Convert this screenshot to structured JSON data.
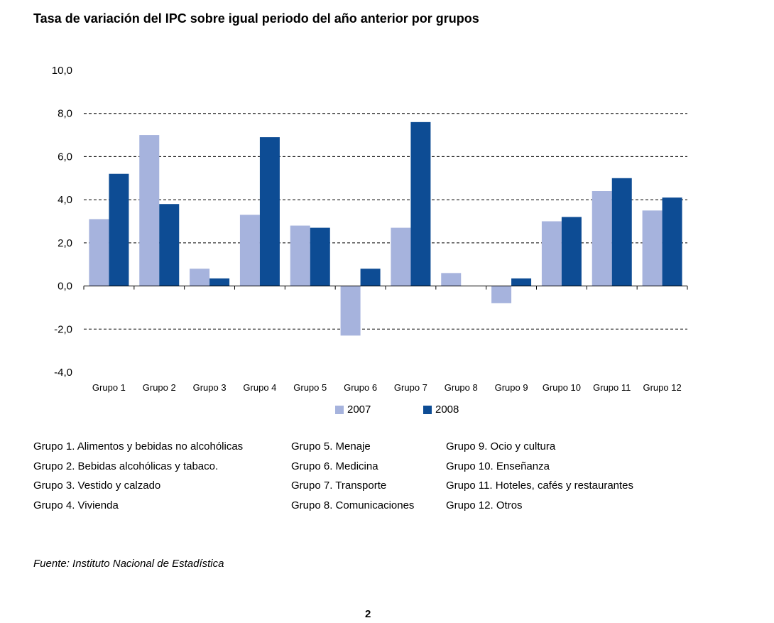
{
  "title": "Tasa de variación del IPC sobre igual periodo del año anterior por grupos",
  "chart_data": {
    "type": "bar",
    "categories": [
      "Grupo 1",
      "Grupo 2",
      "Grupo 3",
      "Grupo 4",
      "Grupo 5",
      "Grupo 6",
      "Grupo 7",
      "Grupo 8",
      "Grupo 9",
      "Grupo 10",
      "Grupo 11",
      "Grupo 12"
    ],
    "series": [
      {
        "name": "2007",
        "color": "#a6b3dd",
        "values": [
          3.1,
          7.0,
          0.8,
          3.3,
          2.8,
          -2.3,
          2.7,
          0.6,
          -0.8,
          3.0,
          4.4,
          3.5
        ]
      },
      {
        "name": "2008",
        "color": "#0d4c94",
        "values": [
          5.2,
          3.8,
          0.35,
          6.9,
          2.7,
          0.8,
          7.6,
          0.0,
          0.35,
          3.2,
          5.0,
          4.1
        ]
      }
    ],
    "yticks": [
      "10,0",
      "8,0",
      "6,0",
      "4,0",
      "2,0",
      "0,0",
      "-2,0",
      "-4,0"
    ],
    "ylim": [
      -4,
      10
    ],
    "grid": "dashed horizontal",
    "legend": "bottom"
  },
  "notes": {
    "col1": [
      "Grupo 1. Alimentos y bebidas no alcohólicas",
      "Grupo 2. Bebidas alcohólicas y  tabaco.",
      "Grupo 3. Vestido y calzado",
      "Grupo 4. Vivienda"
    ],
    "col2": [
      "Grupo 5. Menaje",
      "Grupo 6. Medicina",
      "Grupo 7. Transporte",
      "Grupo 8. Comunicaciones"
    ],
    "col3": [
      "Grupo 9. Ocio y cultura",
      "Grupo 10. Enseñanza",
      "Grupo 11. Hoteles, cafés y restaurantes",
      "Grupo 12. Otros"
    ]
  },
  "source": "Fuente: Instituto Nacional de Estadística",
  "page_number": "2"
}
